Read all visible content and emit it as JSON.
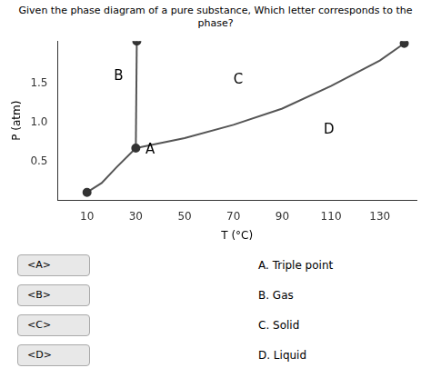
{
  "chart_data": {
    "type": "line",
    "title": "Given the phase diagram of a pure substance, Which letter corresponds to the phase?",
    "x_label": "T (°C)",
    "y_label": "P (atm)",
    "xlim": [
      -2,
      145
    ],
    "ylim": [
      0,
      2.05
    ],
    "xticks": [
      10,
      30,
      50,
      70,
      90,
      110,
      130
    ],
    "yticks": [
      0.5,
      {
        "value": 1.0,
        "label": "1.0"
      },
      1.5
    ],
    "grid": false,
    "series": [
      {
        "type": "line",
        "color": "#555555",
        "x": [
          10,
          16,
          22,
          30
        ],
        "values": [
          0.1,
          0.22,
          0.42,
          0.67
        ]
      },
      {
        "type": "line",
        "color": "#555555",
        "x": [
          30,
          30.4
        ],
        "values": [
          0.67,
          2.05
        ]
      },
      {
        "type": "line",
        "color": "#555555",
        "x": [
          30,
          50,
          70,
          90,
          110,
          130,
          140
        ],
        "values": [
          0.67,
          0.8,
          0.97,
          1.18,
          1.47,
          1.8,
          2.02
        ]
      },
      {
        "type": "scatter",
        "marker": "circle",
        "color": "#333333",
        "x": [
          30,
          30.4,
          10,
          140
        ],
        "values": [
          0.67,
          2.05,
          0.1,
          2.02
        ]
      }
    ],
    "annotations": [
      {
        "text": "B",
        "x": 21,
        "y": 1.6
      },
      {
        "text": "C",
        "x": 70,
        "y": 1.55
      },
      {
        "text": "A",
        "x": 34,
        "y": 0.64
      },
      {
        "text": "D",
        "x": 107,
        "y": 0.9
      }
    ],
    "dropdowns": [
      "<A>",
      "<B>",
      "<C>",
      "<D>"
    ],
    "answers": [
      "A. Triple point",
      "B. Gas",
      "C. Solid",
      "D. Liquid"
    ]
  }
}
